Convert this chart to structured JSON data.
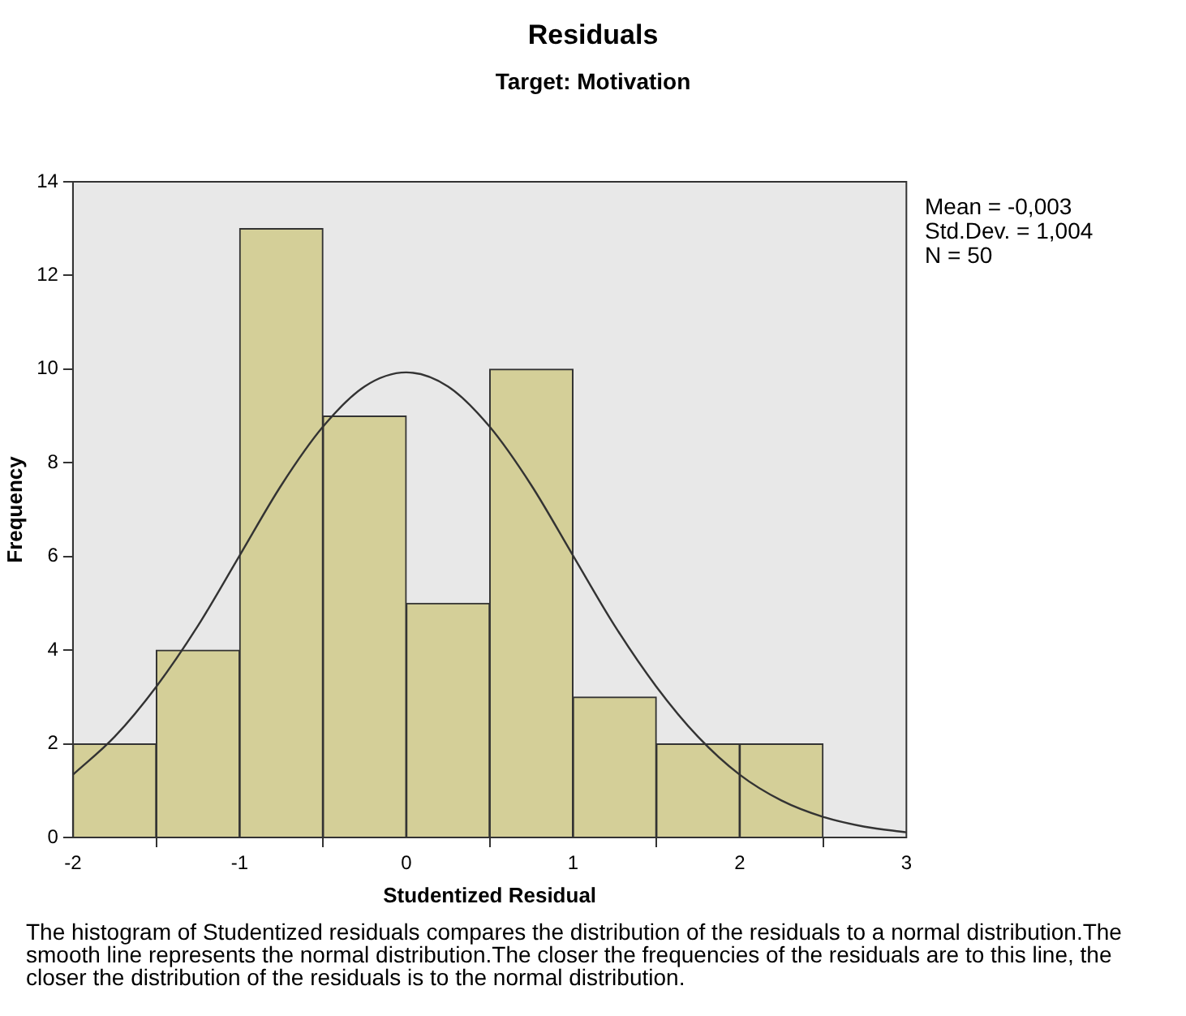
{
  "chart_data": {
    "type": "histogram",
    "title": "Residuals",
    "subtitle": "Target: Motivation",
    "xlabel": "Studentized Residual",
    "ylabel": "Frequency",
    "bins": [
      -2,
      -1.5,
      -1,
      -0.5,
      0,
      0.5,
      1,
      1.5,
      2,
      2.5
    ],
    "values": [
      2,
      4,
      13,
      9,
      5,
      10,
      3,
      2,
      2
    ],
    "color": "#d4cf98",
    "series": [
      {
        "type": "line",
        "color": "#333333",
        "x": [
          -2,
          -1.75,
          -1.5,
          -1.25,
          -1,
          -0.75,
          -0.5,
          -0.25,
          0,
          0.25,
          0.5,
          0.75,
          1,
          1.25,
          1.5,
          1.75,
          2,
          2.25,
          2.5,
          2.75,
          3
        ],
        "values": [
          1.34,
          2.15,
          3.22,
          4.52,
          6.02,
          7.52,
          8.77,
          9.63,
          9.93,
          9.63,
          8.77,
          7.52,
          6.02,
          4.52,
          3.22,
          2.15,
          1.34,
          0.79,
          0.44,
          0.23,
          0.11
        ]
      }
    ],
    "xlim": [
      -2,
      3
    ],
    "xticks": [
      -2,
      -1,
      0,
      1,
      2,
      3
    ],
    "ylim": [
      0,
      14
    ],
    "yticks": [
      0,
      2,
      4,
      6,
      8,
      10,
      12,
      14
    ],
    "grid": false,
    "legend": false,
    "marker": "none",
    "annotations": [
      "Mean = -0,003",
      "Std.Dev. = 1,004",
      "N = 50",
      "The histogram of Studentized residuals compares the distribution of the residuals to a normal distribution.The smooth line represents the normal distribution.The closer the frequencies of the residuals are to this line, the closer the distribution of the residuals is to the normal distribution."
    ]
  }
}
